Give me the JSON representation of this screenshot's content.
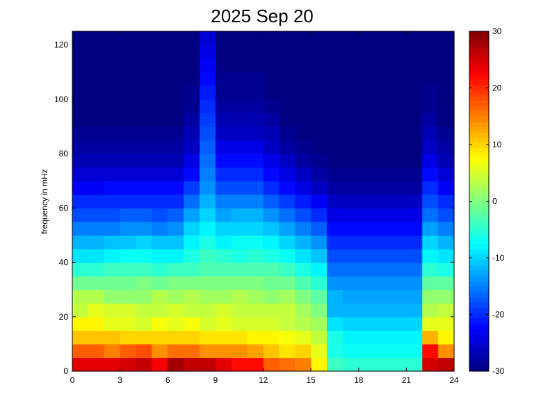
{
  "chart_data": {
    "type": "heatmap",
    "title": "2025 Sep 20",
    "xlabel": "",
    "ylabel": "frequency in mHz",
    "xlim": [
      0,
      24
    ],
    "ylim": [
      0,
      125
    ],
    "xticks": [
      "0",
      "3",
      "6",
      "9",
      "12",
      "15",
      "18",
      "21",
      "24"
    ],
    "yticks": [
      "0",
      "20",
      "40",
      "60",
      "80",
      "100",
      "120"
    ],
    "colorbar": {
      "colormap": "jet",
      "clim": [
        -30,
        30
      ],
      "ticks": [
        "-30",
        "-20",
        "-10",
        "0",
        "10",
        "20",
        "30"
      ]
    },
    "grid": {
      "time_bins": 24,
      "freq_bins": 25,
      "time_unit": "hours",
      "freq_unit": "mHz"
    },
    "values": [
      [
        24,
        24,
        24,
        25,
        26,
        23,
        28,
        26,
        26,
        24,
        22,
        22,
        17,
        16,
        15,
        8,
        -4,
        -5,
        -5,
        -5,
        -5,
        -5,
        25,
        26
      ],
      [
        17,
        17,
        15,
        17,
        18,
        14,
        16,
        16,
        14,
        14,
        14,
        13,
        11,
        9,
        10,
        6,
        -6,
        -7,
        -7,
        -7,
        -7,
        -7,
        22,
        14
      ],
      [
        11,
        11,
        11,
        10,
        10,
        10,
        10,
        10,
        9,
        9,
        9,
        8,
        8,
        7,
        6,
        4,
        -6,
        -8,
        -8,
        -8,
        -8,
        -8,
        12,
        8
      ],
      [
        8,
        8,
        6,
        6,
        5,
        7,
        6,
        7,
        5,
        6,
        5,
        5,
        5,
        4,
        3,
        2,
        -9,
        -10,
        -10,
        -10,
        -10,
        -10,
        6,
        6
      ],
      [
        4,
        6,
        5,
        5,
        4,
        4,
        5,
        4,
        4,
        5,
        4,
        4,
        4,
        4,
        2,
        0,
        -12,
        -12,
        -12,
        -12,
        -12,
        -12,
        3,
        4
      ],
      [
        3,
        3,
        1,
        1,
        1,
        3,
        2,
        3,
        2,
        2,
        3,
        2,
        1,
        2,
        0,
        -2,
        -12,
        -13,
        -13,
        -13,
        -13,
        -13,
        1,
        1
      ],
      [
        -1,
        -1,
        -1,
        -1,
        0,
        -1,
        0,
        0,
        0,
        0,
        0,
        0,
        -1,
        -1,
        -3,
        -5,
        -14,
        -14,
        -14,
        -14,
        -14,
        -14,
        -2,
        -2
      ],
      [
        -5,
        -5,
        -4,
        -4,
        -4,
        -5,
        -4,
        -4,
        -3,
        -3,
        -3,
        -3,
        -3,
        -4,
        -6,
        -8,
        -16,
        -16,
        -16,
        -16,
        -16,
        -16,
        -5,
        -6
      ],
      [
        -9,
        -9,
        -8,
        -7,
        -7,
        -8,
        -8,
        -6,
        -4,
        -5,
        -6,
        -5,
        -6,
        -7,
        -9,
        -11,
        -18,
        -18,
        -18,
        -18,
        -18,
        -18,
        -8,
        -9
      ],
      [
        -12,
        -12,
        -11,
        -11,
        -10,
        -11,
        -11,
        -8,
        -6,
        -8,
        -7,
        -7,
        -8,
        -10,
        -12,
        -14,
        -20,
        -20,
        -20,
        -20,
        -20,
        -20,
        -10,
        -12
      ],
      [
        -15,
        -15,
        -15,
        -14,
        -14,
        -15,
        -14,
        -10,
        -8,
        -10,
        -10,
        -10,
        -11,
        -13,
        -15,
        -17,
        -22,
        -22,
        -22,
        -22,
        -22,
        -22,
        -13,
        -15
      ],
      [
        -18,
        -18,
        -18,
        -17,
        -17,
        -18,
        -17,
        -13,
        -10,
        -13,
        -12,
        -12,
        -14,
        -16,
        -18,
        -20,
        -24,
        -24,
        -24,
        -24,
        -24,
        -24,
        -16,
        -18
      ],
      [
        -20,
        -20,
        -20,
        -20,
        -20,
        -20,
        -20,
        -16,
        -12,
        -15,
        -15,
        -15,
        -17,
        -19,
        -21,
        -23,
        -26,
        -26,
        -26,
        -26,
        -26,
        -26,
        -18,
        -20
      ],
      [
        -23,
        -23,
        -22,
        -22,
        -22,
        -22,
        -22,
        -19,
        -14,
        -18,
        -18,
        -18,
        -20,
        -22,
        -24,
        -26,
        -28,
        -28,
        -28,
        -28,
        -28,
        -28,
        -20,
        -23
      ],
      [
        -25,
        -25,
        -25,
        -25,
        -25,
        -25,
        -25,
        -22,
        -15,
        -20,
        -20,
        -20,
        -22,
        -24,
        -26,
        -28,
        -29,
        -29,
        -29,
        -29,
        -29,
        -29,
        -22,
        -25
      ],
      [
        -27,
        -27,
        -27,
        -27,
        -27,
        -27,
        -27,
        -24,
        -16,
        -22,
        -22,
        -22,
        -24,
        -26,
        -28,
        -29,
        -30,
        -30,
        -30,
        -30,
        -30,
        -30,
        -24,
        -27
      ],
      [
        -28,
        -28,
        -28,
        -28,
        -28,
        -28,
        -28,
        -26,
        -17,
        -24,
        -24,
        -24,
        -26,
        -28,
        -29,
        -30,
        -30,
        -30,
        -30,
        -30,
        -30,
        -30,
        -26,
        -28
      ],
      [
        -29,
        -29,
        -29,
        -29,
        -29,
        -29,
        -29,
        -27,
        -18,
        -26,
        -26,
        -26,
        -27,
        -29,
        -30,
        -30,
        -30,
        -30,
        -30,
        -30,
        -30,
        -30,
        -27,
        -29
      ],
      [
        -30,
        -30,
        -30,
        -30,
        -30,
        -30,
        -30,
        -28,
        -19,
        -27,
        -27,
        -27,
        -28,
        -30,
        -30,
        -30,
        -30,
        -30,
        -30,
        -30,
        -30,
        -30,
        -28,
        -30
      ],
      [
        -30,
        -30,
        -30,
        -30,
        -30,
        -30,
        -30,
        -29,
        -20,
        -28,
        -28,
        -28,
        -29,
        -30,
        -30,
        -30,
        -30,
        -30,
        -30,
        -30,
        -30,
        -30,
        -29,
        -30
      ],
      [
        -30,
        -30,
        -30,
        -30,
        -30,
        -30,
        -30,
        -29,
        -21,
        -29,
        -29,
        -29,
        -30,
        -30,
        -30,
        -30,
        -30,
        -30,
        -30,
        -30,
        -30,
        -30,
        -29,
        -30
      ],
      [
        -30,
        -30,
        -30,
        -30,
        -30,
        -30,
        -30,
        -30,
        -22,
        -29,
        -29,
        -29,
        -30,
        -30,
        -30,
        -30,
        -30,
        -30,
        -30,
        -30,
        -30,
        -30,
        -30,
        -30
      ],
      [
        -30,
        -30,
        -30,
        -30,
        -30,
        -30,
        -30,
        -30,
        -23,
        -30,
        -30,
        -30,
        -30,
        -30,
        -30,
        -30,
        -30,
        -30,
        -30,
        -30,
        -30,
        -30,
        -30,
        -30
      ],
      [
        -30,
        -30,
        -30,
        -30,
        -30,
        -30,
        -30,
        -30,
        -24,
        -30,
        -30,
        -30,
        -30,
        -30,
        -30,
        -30,
        -30,
        -30,
        -30,
        -30,
        -30,
        -30,
        -30,
        -30
      ],
      [
        -30,
        -30,
        -30,
        -30,
        -30,
        -30,
        -30,
        -30,
        -25,
        -30,
        -30,
        -30,
        -30,
        -30,
        -30,
        -30,
        -30,
        -30,
        -30,
        -30,
        -30,
        -30,
        -30,
        -30
      ]
    ]
  }
}
